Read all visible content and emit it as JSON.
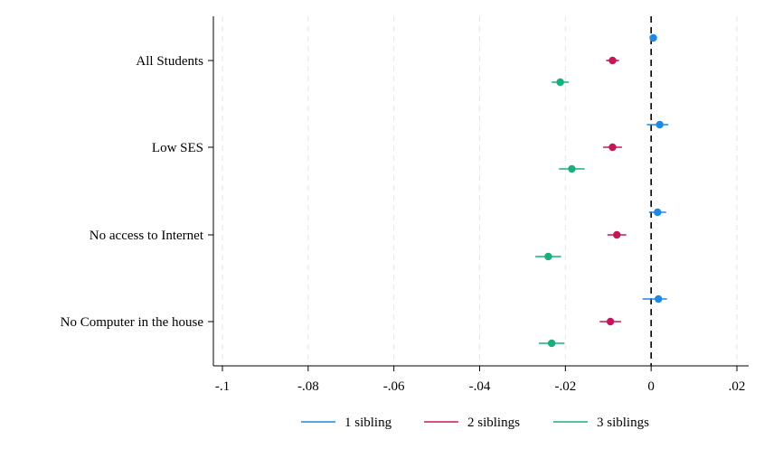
{
  "chart_data": {
    "type": "scatter",
    "orientation": "horizontal",
    "title": "",
    "xlabel": "",
    "ylabel": "",
    "xlim": [
      -0.1,
      0.02
    ],
    "x_ticks": [
      -0.1,
      -0.08,
      -0.06,
      -0.04,
      -0.02,
      0,
      0.02
    ],
    "x_tick_labels": [
      "-.1",
      "-.08",
      "-.06",
      "-.04",
      "-.02",
      "0",
      ".02"
    ],
    "reference_line": {
      "x": 0,
      "style": "dashed",
      "color": "#000000"
    },
    "grid": "vertical dashed",
    "legend_position": "bottom",
    "categories": [
      "All Students",
      "Low SES",
      "No access to Internet",
      "No Computer in the house"
    ],
    "series": [
      {
        "name": "1 sibling",
        "color": "#1e88e5",
        "values": [
          0.0005,
          0.002,
          0.0015,
          0.0017
        ],
        "ci_low": [
          0.0,
          -0.001,
          -0.0005,
          -0.002
        ],
        "ci_high": [
          0.001,
          0.004,
          0.0035,
          0.0037
        ]
      },
      {
        "name": "2 siblings",
        "color": "#c2185b",
        "values": [
          -0.009,
          -0.009,
          -0.008,
          -0.0095
        ],
        "ci_low": [
          -0.0105,
          -0.0112,
          -0.0102,
          -0.012
        ],
        "ci_high": [
          -0.0075,
          -0.0068,
          -0.0058,
          -0.007
        ]
      },
      {
        "name": "3 siblings",
        "color": "#1aaf7a",
        "values": [
          -0.0212,
          -0.0185,
          -0.024,
          -0.0232
        ],
        "ci_low": [
          -0.0232,
          -0.0215,
          -0.027,
          -0.0262
        ],
        "ci_high": [
          -0.0192,
          -0.0155,
          -0.021,
          -0.0202
        ]
      }
    ]
  }
}
